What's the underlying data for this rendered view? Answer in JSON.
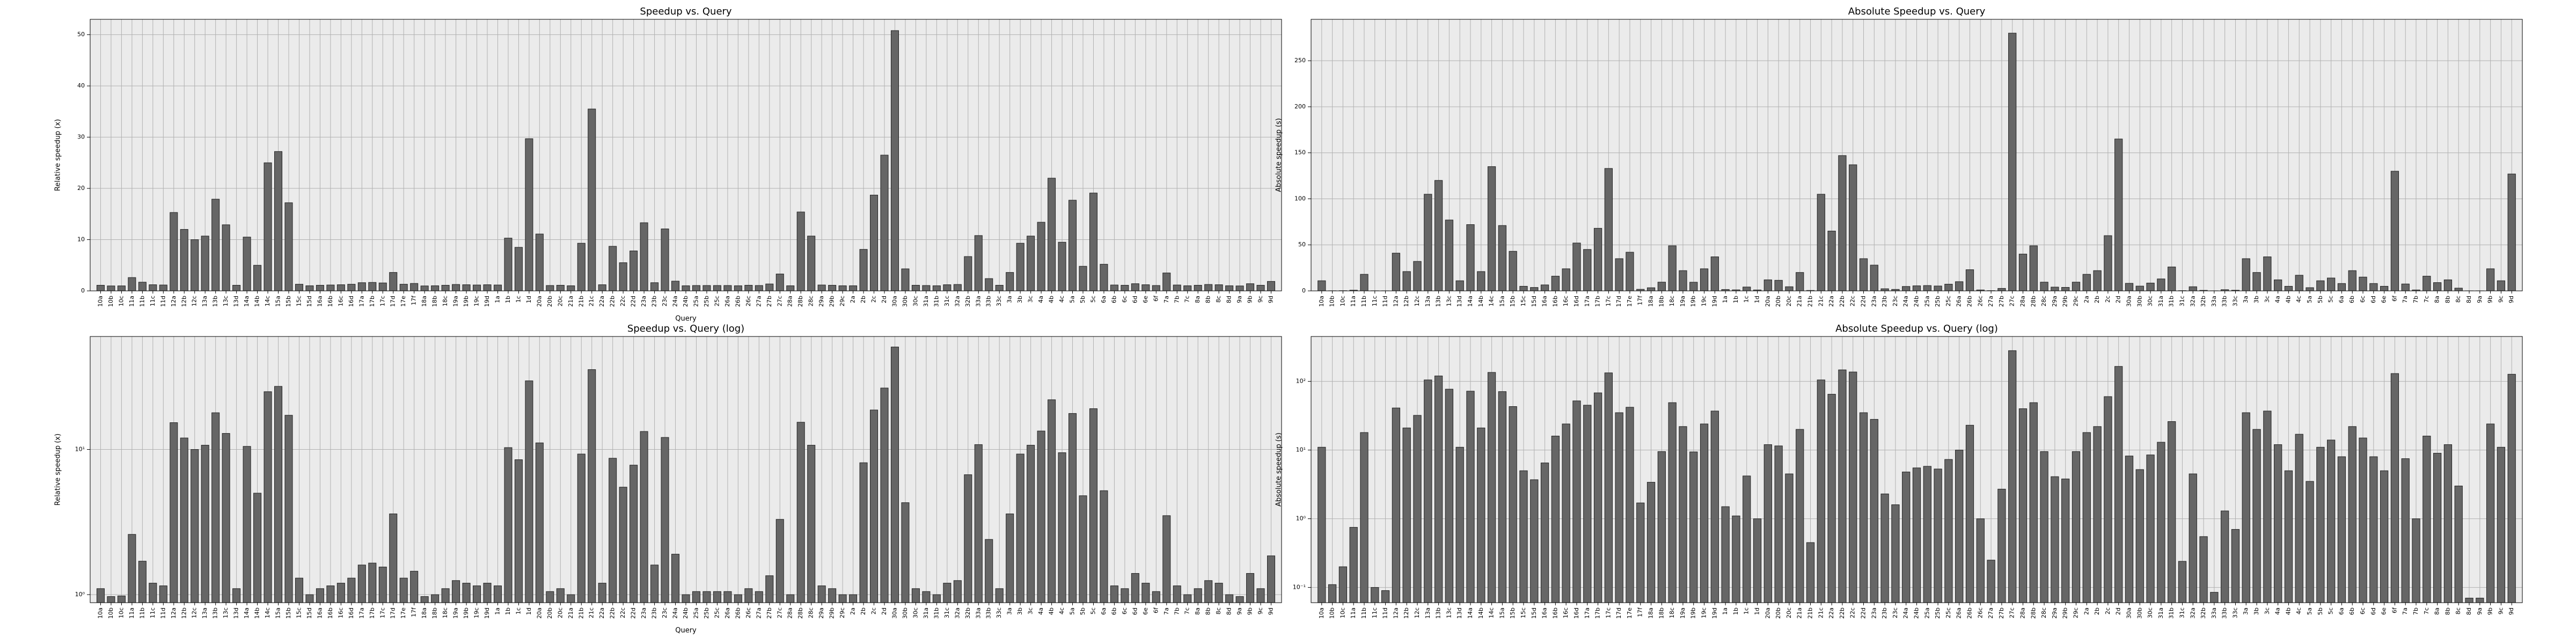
{
  "chart_data": [
    {
      "type": "bar",
      "title": "Speedup vs. Query",
      "xlabel": "Query",
      "ylabel": "Relative speedup (x)",
      "scale": "linear",
      "grid": true,
      "color": "#666666",
      "categories": [
        "10a",
        "10b",
        "10c",
        "11a",
        "11b",
        "11c",
        "11d",
        "12a",
        "12b",
        "12c",
        "13a",
        "13b",
        "13c",
        "13d",
        "14a",
        "14b",
        "14c",
        "15a",
        "15b",
        "15c",
        "15d",
        "16a",
        "16b",
        "16c",
        "16d",
        "17a",
        "17b",
        "17c",
        "17d",
        "17e",
        "17f",
        "18a",
        "18b",
        "18c",
        "19a",
        "19b",
        "19c",
        "19d",
        "1a",
        "1b",
        "1c",
        "1d",
        "20a",
        "20b",
        "20c",
        "21a",
        "21b",
        "21c",
        "22a",
        "22b",
        "22c",
        "22d",
        "23a",
        "23b",
        "23c",
        "24a",
        "24b",
        "25a",
        "25b",
        "25c",
        "26a",
        "26b",
        "26c",
        "27a",
        "27b",
        "27c",
        "28a",
        "28b",
        "28c",
        "29a",
        "29b",
        "29c",
        "2a",
        "2b",
        "2c",
        "2d",
        "30a",
        "30b",
        "30c",
        "31a",
        "31b",
        "31c",
        "32a",
        "32b",
        "33a",
        "33b",
        "33c",
        "3a",
        "3b",
        "3c",
        "4a",
        "4b",
        "4c",
        "5a",
        "5b",
        "5c",
        "6a",
        "6b",
        "6c",
        "6d",
        "6e",
        "6f",
        "7a",
        "7b",
        "7c",
        "8a",
        "8b",
        "8c",
        "8d",
        "9a",
        "9b",
        "9c",
        "9d"
      ],
      "values": [
        1.1,
        0.97,
        0.98,
        2.6,
        1.7,
        1.2,
        1.15,
        15.3,
        12.0,
        10.0,
        10.7,
        17.9,
        12.9,
        1.1,
        10.5,
        5.0,
        25.0,
        27.2,
        17.2,
        1.3,
        1.0,
        1.1,
        1.15,
        1.2,
        1.3,
        1.6,
        1.65,
        1.55,
        3.6,
        1.3,
        1.45,
        0.97,
        1.0,
        1.1,
        1.25,
        1.2,
        1.15,
        1.2,
        1.15,
        10.3,
        8.5,
        29.7,
        11.1,
        1.05,
        1.1,
        1.0,
        9.3,
        35.5,
        1.2,
        8.7,
        5.5,
        7.8,
        13.3,
        1.6,
        12.1,
        1.9,
        1.0,
        1.05,
        1.05,
        1.05,
        1.05,
        1.0,
        1.1,
        1.05,
        1.35,
        3.3,
        1.0,
        15.4,
        10.7,
        1.15,
        1.1,
        1.0,
        1.0,
        8.1,
        18.7,
        26.5,
        50.8,
        4.3,
        1.1,
        1.05,
        1.0,
        1.2,
        1.25,
        6.7,
        10.8,
        2.4,
        1.1,
        3.6,
        9.3,
        10.7,
        13.4,
        22.0,
        9.5,
        17.7,
        4.8,
        19.1,
        5.2,
        1.15,
        1.1,
        1.4,
        1.2,
        1.05,
        3.5,
        1.15,
        1.0,
        1.1,
        1.25,
        1.2,
        1.0,
        0.97,
        1.4,
        1.1,
        1.85
      ],
      "ylim": [
        0,
        53
      ],
      "yticks": [
        0,
        10,
        20,
        30,
        40,
        50
      ]
    },
    {
      "type": "bar",
      "title": "Absolute Speedup vs. Query",
      "ylabel": "Absolute speedup (s)",
      "scale": "linear",
      "grid": true,
      "color": "#666666",
      "categories": [
        "10a",
        "10b",
        "10c",
        "11a",
        "11b",
        "11c",
        "11d",
        "12a",
        "12b",
        "12c",
        "13a",
        "13b",
        "13c",
        "13d",
        "14a",
        "14b",
        "14c",
        "15a",
        "15b",
        "15c",
        "15d",
        "16a",
        "16b",
        "16c",
        "16d",
        "17a",
        "17b",
        "17c",
        "17d",
        "17e",
        "17f",
        "18a",
        "18b",
        "18c",
        "19a",
        "19b",
        "19c",
        "19d",
        "1a",
        "1b",
        "1c",
        "1d",
        "20a",
        "20b",
        "20c",
        "21a",
        "21b",
        "21c",
        "22a",
        "22b",
        "22c",
        "22d",
        "23a",
        "23b",
        "23c",
        "24a",
        "24b",
        "25a",
        "25b",
        "25c",
        "26a",
        "26b",
        "26c",
        "27a",
        "27b",
        "27c",
        "28a",
        "28b",
        "28c",
        "29a",
        "29b",
        "29c",
        "2a",
        "2b",
        "2c",
        "2d",
        "30a",
        "30b",
        "30c",
        "31a",
        "31b",
        "31c",
        "32a",
        "32b",
        "33a",
        "33b",
        "33c",
        "3a",
        "3b",
        "3c",
        "4a",
        "4b",
        "4c",
        "5a",
        "5b",
        "5c",
        "6a",
        "6b",
        "6c",
        "6d",
        "6e",
        "6f",
        "7a",
        "7b",
        "7c",
        "8a",
        "8b",
        "8c",
        "8d",
        "9a",
        "9b",
        "9c",
        "9d"
      ],
      "values": [
        11,
        0.11,
        0.2,
        0.75,
        18,
        0.1,
        0.09,
        41,
        21,
        32,
        105,
        120,
        77,
        11,
        72,
        21,
        135,
        71,
        43,
        5,
        3.7,
        6.5,
        16,
        24,
        52,
        45,
        68,
        133,
        35,
        42,
        1.7,
        3.4,
        9.5,
        49,
        22,
        9.4,
        24,
        37,
        1.5,
        1.1,
        4.2,
        1.0,
        12,
        11.5,
        4.5,
        20,
        0.45,
        105,
        65,
        147,
        137,
        35,
        28,
        2.3,
        1.6,
        4.8,
        5.5,
        5.8,
        5.3,
        7.3,
        10,
        23,
        1.0,
        0.25,
        2.7,
        280,
        40,
        49,
        9.5,
        4.1,
        3.8,
        9.5,
        18,
        22,
        60,
        165,
        8.2,
        5.2,
        8.5,
        13,
        26,
        0.24,
        4.5,
        0.55,
        0.085,
        1.3,
        0.7,
        35,
        20,
        37,
        12,
        5,
        17,
        3.5,
        11,
        14,
        8,
        22,
        15,
        8,
        5,
        130,
        7.5,
        1.0,
        16,
        9,
        12,
        3.0,
        0.07,
        0.07,
        24,
        11,
        127
      ],
      "ylim": [
        0,
        295
      ],
      "yticks": [
        0,
        50,
        100,
        150,
        200,
        250
      ]
    },
    {
      "type": "bar",
      "title": "Speedup vs. Query (log)",
      "xlabel": "Query",
      "ylabel": "Relative speedup (x)",
      "scale": "log",
      "grid": true,
      "color": "#666666",
      "categories": [
        "10a",
        "10b",
        "10c",
        "11a",
        "11b",
        "11c",
        "11d",
        "12a",
        "12b",
        "12c",
        "13a",
        "13b",
        "13c",
        "13d",
        "14a",
        "14b",
        "14c",
        "15a",
        "15b",
        "15c",
        "15d",
        "16a",
        "16b",
        "16c",
        "16d",
        "17a",
        "17b",
        "17c",
        "17d",
        "17e",
        "17f",
        "18a",
        "18b",
        "18c",
        "19a",
        "19b",
        "19c",
        "19d",
        "1a",
        "1b",
        "1c",
        "1d",
        "20a",
        "20b",
        "20c",
        "21a",
        "21b",
        "21c",
        "22a",
        "22b",
        "22c",
        "22d",
        "23a",
        "23b",
        "23c",
        "24a",
        "24b",
        "25a",
        "25b",
        "25c",
        "26a",
        "26b",
        "26c",
        "27a",
        "27b",
        "27c",
        "28a",
        "28b",
        "28c",
        "29a",
        "29b",
        "29c",
        "2a",
        "2b",
        "2c",
        "2d",
        "30a",
        "30b",
        "30c",
        "31a",
        "31b",
        "31c",
        "32a",
        "32b",
        "33a",
        "33b",
        "33c",
        "3a",
        "3b",
        "3c",
        "4a",
        "4b",
        "4c",
        "5a",
        "5b",
        "5c",
        "6a",
        "6b",
        "6c",
        "6d",
        "6e",
        "6f",
        "7a",
        "7b",
        "7c",
        "8a",
        "8b",
        "8c",
        "8d",
        "9a",
        "9b",
        "9c",
        "9d"
      ],
      "values": [
        1.1,
        0.97,
        0.98,
        2.6,
        1.7,
        1.2,
        1.15,
        15.3,
        12.0,
        10.0,
        10.7,
        17.9,
        12.9,
        1.1,
        10.5,
        5.0,
        25.0,
        27.2,
        17.2,
        1.3,
        1.0,
        1.1,
        1.15,
        1.2,
        1.3,
        1.6,
        1.65,
        1.55,
        3.6,
        1.3,
        1.45,
        0.97,
        1.0,
        1.1,
        1.25,
        1.2,
        1.15,
        1.2,
        1.15,
        10.3,
        8.5,
        29.7,
        11.1,
        1.05,
        1.1,
        1.0,
        9.3,
        35.5,
        1.2,
        8.7,
        5.5,
        7.8,
        13.3,
        1.6,
        12.1,
        1.9,
        1.0,
        1.05,
        1.05,
        1.05,
        1.05,
        1.0,
        1.1,
        1.05,
        1.35,
        3.3,
        1.0,
        15.4,
        10.7,
        1.15,
        1.1,
        1.0,
        1.0,
        8.1,
        18.7,
        26.5,
        50.8,
        4.3,
        1.1,
        1.05,
        1.0,
        1.2,
        1.25,
        6.7,
        10.8,
        2.4,
        1.1,
        3.6,
        9.3,
        10.7,
        13.4,
        22.0,
        9.5,
        17.7,
        4.8,
        19.1,
        5.2,
        1.15,
        1.1,
        1.4,
        1.2,
        1.05,
        3.5,
        1.15,
        1.0,
        1.1,
        1.25,
        1.2,
        1.0,
        0.97,
        1.4,
        1.1,
        1.85
      ],
      "ylim": [
        0.88,
        60
      ],
      "yticks": [
        {
          "value": 1,
          "label": "10⁰"
        },
        {
          "value": 10,
          "label": "10¹"
        }
      ]
    },
    {
      "type": "bar",
      "title": "Absolute Speedup vs. Query (log)",
      "ylabel": "Absolute speedup (s)",
      "scale": "log",
      "grid": true,
      "color": "#666666",
      "categories": [
        "10a",
        "10b",
        "10c",
        "11a",
        "11b",
        "11c",
        "11d",
        "12a",
        "12b",
        "12c",
        "13a",
        "13b",
        "13c",
        "13d",
        "14a",
        "14b",
        "14c",
        "15a",
        "15b",
        "15c",
        "15d",
        "16a",
        "16b",
        "16c",
        "16d",
        "17a",
        "17b",
        "17c",
        "17d",
        "17e",
        "17f",
        "18a",
        "18b",
        "18c",
        "19a",
        "19b",
        "19c",
        "19d",
        "1a",
        "1b",
        "1c",
        "1d",
        "20a",
        "20b",
        "20c",
        "21a",
        "21b",
        "21c",
        "22a",
        "22b",
        "22c",
        "22d",
        "23a",
        "23b",
        "23c",
        "24a",
        "24b",
        "25a",
        "25b",
        "25c",
        "26a",
        "26b",
        "26c",
        "27a",
        "27b",
        "27c",
        "28a",
        "28b",
        "28c",
        "29a",
        "29b",
        "29c",
        "2a",
        "2b",
        "2c",
        "2d",
        "30a",
        "30b",
        "30c",
        "31a",
        "31b",
        "31c",
        "32a",
        "32b",
        "33a",
        "33b",
        "33c",
        "3a",
        "3b",
        "3c",
        "4a",
        "4b",
        "4c",
        "5a",
        "5b",
        "5c",
        "6a",
        "6b",
        "6c",
        "6d",
        "6e",
        "6f",
        "7a",
        "7b",
        "7c",
        "8a",
        "8b",
        "8c",
        "8d",
        "9a",
        "9b",
        "9c",
        "9d"
      ],
      "values": [
        11,
        0.11,
        0.2,
        0.75,
        18,
        0.1,
        0.09,
        41,
        21,
        32,
        105,
        120,
        77,
        11,
        72,
        21,
        135,
        71,
        43,
        5,
        3.7,
        6.5,
        16,
        24,
        52,
        45,
        68,
        133,
        35,
        42,
        1.7,
        3.4,
        9.5,
        49,
        22,
        9.4,
        24,
        37,
        1.5,
        1.1,
        4.2,
        1.0,
        12,
        11.5,
        4.5,
        20,
        0.45,
        105,
        65,
        147,
        137,
        35,
        28,
        2.3,
        1.6,
        4.8,
        5.5,
        5.8,
        5.3,
        7.3,
        10,
        23,
        1.0,
        0.25,
        2.7,
        280,
        40,
        49,
        9.5,
        4.1,
        3.8,
        9.5,
        18,
        22,
        60,
        165,
        8.2,
        5.2,
        8.5,
        13,
        26,
        0.24,
        4.5,
        0.55,
        0.085,
        1.3,
        0.7,
        35,
        20,
        37,
        12,
        5,
        17,
        3.5,
        11,
        14,
        8,
        22,
        15,
        8,
        5,
        130,
        7.5,
        1.0,
        16,
        9,
        12,
        3.0,
        0.07,
        0.07,
        24,
        11,
        127
      ],
      "ylim": [
        0.06,
        450
      ],
      "yticks": [
        {
          "value": 0.1,
          "label": "10⁻¹"
        },
        {
          "value": 1,
          "label": "10⁰"
        },
        {
          "value": 10,
          "label": "10¹"
        },
        {
          "value": 100,
          "label": "10²"
        }
      ]
    }
  ]
}
